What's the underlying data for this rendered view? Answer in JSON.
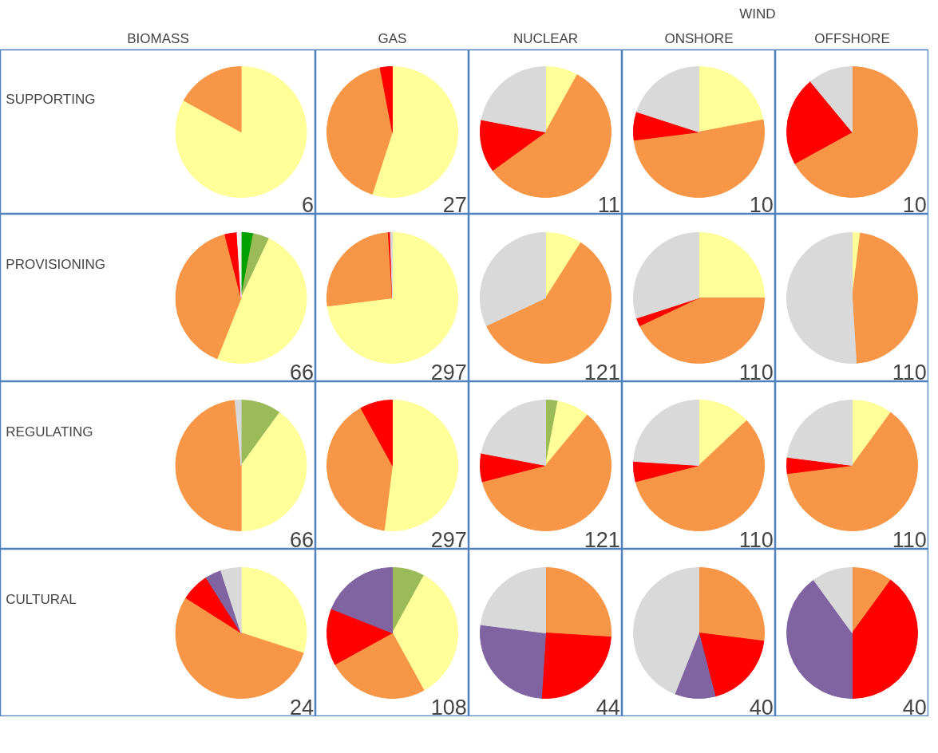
{
  "chart_data": [
    {
      "type": "pie",
      "title": "BIOMASS",
      "ylabel": "SUPPORTING",
      "categories": [
        null,
        null
      ],
      "values": [
        83,
        17
      ],
      "colors": [
        "#ffff99",
        "#f79646"
      ],
      "annotations": [
        "6"
      ]
    },
    {
      "type": "pie",
      "title": "GAS",
      "categories": [
        null,
        null,
        null
      ],
      "values": [
        55,
        42,
        3
      ],
      "colors": [
        "#ffff99",
        "#f79646",
        "#ff0000"
      ],
      "annotations": [
        "27"
      ]
    },
    {
      "type": "pie",
      "title": "NUCLEAR",
      "categories": [
        null,
        null,
        null,
        null
      ],
      "values": [
        8,
        57,
        13,
        22
      ],
      "colors": [
        "#ffff99",
        "#f79646",
        "#ff0000",
        "#d9d9d9"
      ],
      "annotations": [
        "11"
      ]
    },
    {
      "type": "pie",
      "title": "ONSHORE",
      "subtitle": "WIND",
      "categories": [
        null,
        null,
        null,
        null
      ],
      "values": [
        22,
        51,
        7,
        20
      ],
      "colors": [
        "#ffff99",
        "#f79646",
        "#ff0000",
        "#d9d9d9"
      ],
      "annotations": [
        "10"
      ]
    },
    {
      "type": "pie",
      "title": "OFFSHORE",
      "categories": [
        null,
        null,
        null
      ],
      "values": [
        67,
        22,
        11
      ],
      "colors": [
        "#f79646",
        "#ff0000",
        "#d9d9d9"
      ],
      "annotations": [
        "10"
      ]
    },
    {
      "type": "pie",
      "ylabel": "PROVISIONING",
      "categories": [
        null,
        null,
        null,
        null,
        null,
        null
      ],
      "values": [
        3,
        4,
        49,
        40,
        3,
        1
      ],
      "colors": [
        "#00a000",
        "#9bbb59",
        "#ffff99",
        "#f79646",
        "#ff0000",
        "#f2f2f2"
      ],
      "annotations": [
        "66"
      ]
    },
    {
      "type": "pie",
      "categories": [
        null,
        null,
        null,
        null
      ],
      "values": [
        73,
        26,
        0.5,
        0.5
      ],
      "colors": [
        "#ffff99",
        "#f79646",
        "#ff0000",
        "#d9d9d9"
      ],
      "annotations": [
        "297"
      ]
    },
    {
      "type": "pie",
      "categories": [
        null,
        null,
        null
      ],
      "values": [
        9,
        59,
        32
      ],
      "colors": [
        "#ffff99",
        "#f79646",
        "#d9d9d9"
      ],
      "annotations": [
        "121"
      ]
    },
    {
      "type": "pie",
      "categories": [
        null,
        null,
        null,
        null
      ],
      "values": [
        25,
        43,
        2,
        30
      ],
      "colors": [
        "#ffff99",
        "#f79646",
        "#ff0000",
        "#d9d9d9"
      ],
      "annotations": [
        "110"
      ]
    },
    {
      "type": "pie",
      "categories": [
        null,
        null,
        null
      ],
      "values": [
        2,
        47,
        51
      ],
      "colors": [
        "#ffff99",
        "#f79646",
        "#d9d9d9"
      ],
      "annotations": [
        "110"
      ]
    },
    {
      "type": "pie",
      "ylabel": "REGULATING",
      "categories": [
        null,
        null,
        null,
        null
      ],
      "values": [
        10,
        40,
        48.5,
        1.5
      ],
      "colors": [
        "#9bbb59",
        "#ffff99",
        "#f79646",
        "#d9d9d9"
      ],
      "annotations": [
        "66"
      ]
    },
    {
      "type": "pie",
      "categories": [
        null,
        null,
        null
      ],
      "values": [
        52,
        40,
        8
      ],
      "colors": [
        "#ffff99",
        "#f79646",
        "#ff0000"
      ],
      "annotations": [
        "297"
      ]
    },
    {
      "type": "pie",
      "categories": [
        null,
        null,
        null,
        null,
        null
      ],
      "values": [
        3,
        8,
        60,
        7,
        22
      ],
      "colors": [
        "#9bbb59",
        "#ffff99",
        "#f79646",
        "#ff0000",
        "#d9d9d9"
      ],
      "annotations": [
        "121"
      ]
    },
    {
      "type": "pie",
      "categories": [
        null,
        null,
        null,
        null
      ],
      "values": [
        13,
        58,
        5,
        24
      ],
      "colors": [
        "#ffff99",
        "#f79646",
        "#ff0000",
        "#d9d9d9"
      ],
      "annotations": [
        "110"
      ]
    },
    {
      "type": "pie",
      "categories": [
        null,
        null,
        null,
        null
      ],
      "values": [
        10,
        63,
        4,
        23
      ],
      "colors": [
        "#ffff99",
        "#f79646",
        "#ff0000",
        "#d9d9d9"
      ],
      "annotations": [
        "110"
      ]
    },
    {
      "type": "pie",
      "ylabel": "CULTURAL",
      "categories": [
        null,
        null,
        null,
        null,
        null
      ],
      "values": [
        30,
        54,
        7,
        4,
        5
      ],
      "colors": [
        "#ffff99",
        "#f79646",
        "#ff0000",
        "#8064a2",
        "#d9d9d9"
      ],
      "annotations": [
        "24"
      ]
    },
    {
      "type": "pie",
      "categories": [
        null,
        null,
        null,
        null,
        null
      ],
      "values": [
        8,
        34,
        25,
        14,
        19
      ],
      "colors": [
        "#9bbb59",
        "#ffff99",
        "#f79646",
        "#ff0000",
        "#8064a2"
      ],
      "annotations": [
        "108"
      ]
    },
    {
      "type": "pie",
      "categories": [
        null,
        null,
        null,
        null
      ],
      "values": [
        26,
        25,
        26,
        23
      ],
      "colors": [
        "#f79646",
        "#ff0000",
        "#8064a2",
        "#d9d9d9"
      ],
      "annotations": [
        "44"
      ]
    },
    {
      "type": "pie",
      "categories": [
        null,
        null,
        null,
        null
      ],
      "values": [
        27,
        19,
        10,
        44
      ],
      "colors": [
        "#f79646",
        "#ff0000",
        "#8064a2",
        "#d9d9d9"
      ],
      "annotations": [
        "40"
      ]
    },
    {
      "type": "pie",
      "categories": [
        null,
        null,
        null,
        null
      ],
      "values": [
        10,
        40,
        40,
        10
      ],
      "colors": [
        "#f79646",
        "#ff0000",
        "#8064a2",
        "#d9d9d9"
      ],
      "annotations": [
        "40"
      ]
    }
  ]
}
